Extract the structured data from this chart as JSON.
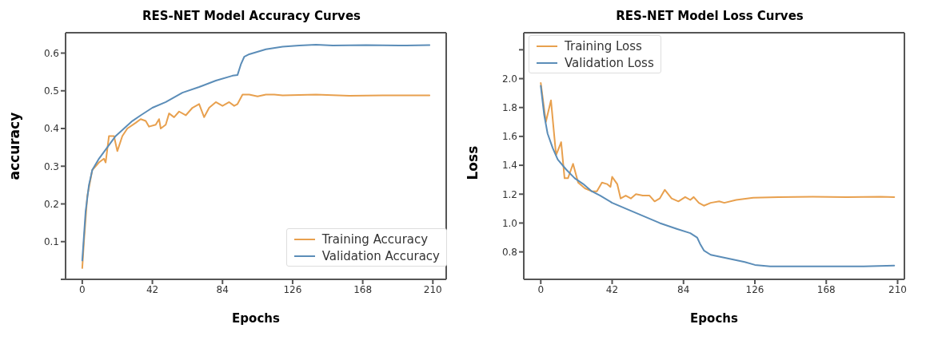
{
  "chart_data": [
    {
      "type": "line",
      "title": "RES-NET Model  Accuracy Curves",
      "xlabel": "Epochs",
      "ylabel": "accuracy",
      "xlim": [
        -10,
        218
      ],
      "xticks": [
        0,
        42,
        84,
        126,
        168,
        210
      ],
      "ylim": [
        0,
        0.654
      ],
      "yticks": [
        {
          "value": 0,
          "label": null
        },
        0.1,
        0.2,
        0.3,
        0.4,
        0.5,
        0.6
      ],
      "legend": "bottom right",
      "grid": false,
      "marker": "none",
      "line_style": "solid",
      "series": [
        {
          "name": "Training Accuracy",
          "color": "#e8a04e",
          "x": [
            0,
            1,
            3,
            6,
            10,
            13,
            14,
            16,
            19,
            21,
            24,
            27,
            32,
            35,
            38,
            40,
            44,
            46,
            47,
            50,
            52,
            55,
            58,
            62,
            66,
            70,
            73,
            76,
            80,
            84,
            88,
            91,
            93,
            96,
            100,
            105,
            110,
            115,
            120,
            140,
            160,
            180,
            200,
            208
          ],
          "values": [
            0.03,
            0.1,
            0.22,
            0.29,
            0.31,
            0.32,
            0.31,
            0.38,
            0.38,
            0.34,
            0.38,
            0.4,
            0.415,
            0.425,
            0.42,
            0.405,
            0.41,
            0.425,
            0.4,
            0.41,
            0.44,
            0.43,
            0.445,
            0.435,
            0.455,
            0.465,
            0.43,
            0.455,
            0.47,
            0.46,
            0.47,
            0.46,
            0.465,
            0.49,
            0.49,
            0.485,
            0.49,
            0.49,
            0.488,
            0.49,
            0.487,
            0.488,
            0.488,
            0.488
          ]
        },
        {
          "name": "Validation Accuracy",
          "color": "#5b8db8",
          "x": [
            0,
            2,
            4,
            6,
            10,
            15,
            20,
            25,
            30,
            35,
            42,
            50,
            60,
            70,
            80,
            90,
            93,
            95,
            97,
            100,
            110,
            120,
            130,
            140,
            150,
            170,
            190,
            208
          ],
          "values": [
            0.05,
            0.18,
            0.25,
            0.29,
            0.32,
            0.35,
            0.38,
            0.4,
            0.42,
            0.435,
            0.455,
            0.47,
            0.495,
            0.51,
            0.527,
            0.54,
            0.542,
            0.57,
            0.59,
            0.597,
            0.61,
            0.617,
            0.62,
            0.622,
            0.62,
            0.621,
            0.62,
            0.621
          ]
        }
      ]
    },
    {
      "type": "line",
      "title": "RES-NET Model Loss Curves",
      "xlabel": "Epochs",
      "ylabel": "Loss",
      "xlim": [
        -10,
        214
      ],
      "xticks": [
        0,
        42,
        84,
        126,
        168,
        210
      ],
      "ylim": [
        0.61,
        2.318
      ],
      "yticks": [
        0.8,
        {
          "value": 1,
          "label": "1.0"
        },
        1.2,
        1.4,
        1.6,
        1.8,
        {
          "value": 2,
          "label": "2.0"
        },
        {
          "value": 2.2,
          "label": null
        }
      ],
      "legend": "top left",
      "grid": false,
      "marker": "none",
      "line_style": "solid",
      "series": [
        {
          "name": "Training Loss",
          "color": "#e8a04e",
          "x": [
            0,
            3,
            6,
            9,
            12,
            14,
            16,
            19,
            22,
            26,
            30,
            33,
            36,
            39,
            41,
            42,
            45,
            47,
            50,
            53,
            56,
            60,
            64,
            67,
            70,
            73,
            77,
            81,
            85,
            88,
            90,
            93,
            96,
            100,
            105,
            108,
            115,
            125,
            140,
            160,
            180,
            200,
            208
          ],
          "values": [
            1.97,
            1.7,
            1.85,
            1.47,
            1.56,
            1.31,
            1.31,
            1.41,
            1.28,
            1.24,
            1.22,
            1.22,
            1.28,
            1.27,
            1.25,
            1.32,
            1.27,
            1.17,
            1.19,
            1.17,
            1.2,
            1.19,
            1.19,
            1.15,
            1.17,
            1.23,
            1.17,
            1.15,
            1.18,
            1.16,
            1.18,
            1.14,
            1.12,
            1.14,
            1.15,
            1.14,
            1.16,
            1.175,
            1.18,
            1.182,
            1.18,
            1.182,
            1.18
          ]
        },
        {
          "name": "Validation Loss",
          "color": "#5b8db8",
          "x": [
            0,
            2,
            4,
            7,
            10,
            15,
            20,
            25,
            30,
            35,
            42,
            50,
            60,
            70,
            80,
            88,
            92,
            94,
            96,
            100,
            110,
            120,
            126,
            135,
            150,
            170,
            190,
            208
          ],
          "values": [
            1.95,
            1.75,
            1.62,
            1.52,
            1.44,
            1.37,
            1.31,
            1.27,
            1.22,
            1.19,
            1.14,
            1.1,
            1.05,
            1.0,
            0.96,
            0.93,
            0.9,
            0.85,
            0.81,
            0.78,
            0.755,
            0.73,
            0.71,
            0.7,
            0.7,
            0.7,
            0.7,
            0.705
          ]
        }
      ]
    }
  ]
}
